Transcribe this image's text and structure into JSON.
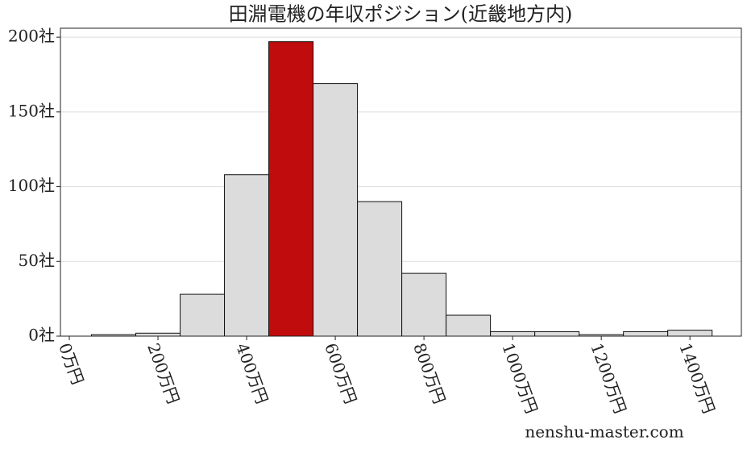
{
  "chart_data": {
    "type": "histogram",
    "title": "田淵電機の年収ポジション(近畿地方内)",
    "bins": [
      50,
      150,
      250,
      350,
      450,
      550,
      650,
      750,
      850,
      950,
      1050,
      1150,
      1250,
      1350,
      1450
    ],
    "values": [
      1,
      2,
      28,
      108,
      197,
      169,
      90,
      42,
      14,
      3,
      3,
      1,
      3,
      4
    ],
    "colors": [
      "#dcdcdc",
      "#dcdcdc",
      "#dcdcdc",
      "#dcdcdc",
      "#c00c0c",
      "#dcdcdc",
      "#dcdcdc",
      "#dcdcdc",
      "#dcdcdc",
      "#dcdcdc",
      "#dcdcdc",
      "#dcdcdc",
      "#dcdcdc",
      "#dcdcdc"
    ],
    "xlim": [
      -20,
      1516
    ],
    "xticks": [
      {
        "value": 0,
        "label": "0万円"
      },
      {
        "value": 200,
        "label": "200万円"
      },
      {
        "value": 400,
        "label": "400万円"
      },
      {
        "value": 600,
        "label": "600万円"
      },
      {
        "value": 800,
        "label": "800万円"
      },
      {
        "value": 1000,
        "label": "1000万円"
      },
      {
        "value": 1200,
        "label": "1200万円"
      },
      {
        "value": 1400,
        "label": "1400万円"
      }
    ],
    "ylim": [
      0,
      206
    ],
    "yticks": [
      {
        "value": 0,
        "label": "0社"
      },
      {
        "value": 50,
        "label": "50社"
      },
      {
        "value": 100,
        "label": "100社"
      },
      {
        "value": 150,
        "label": "150社"
      },
      {
        "value": 200,
        "label": "200社"
      }
    ],
    "grid": true,
    "watermark": "nenshu-master.com"
  }
}
